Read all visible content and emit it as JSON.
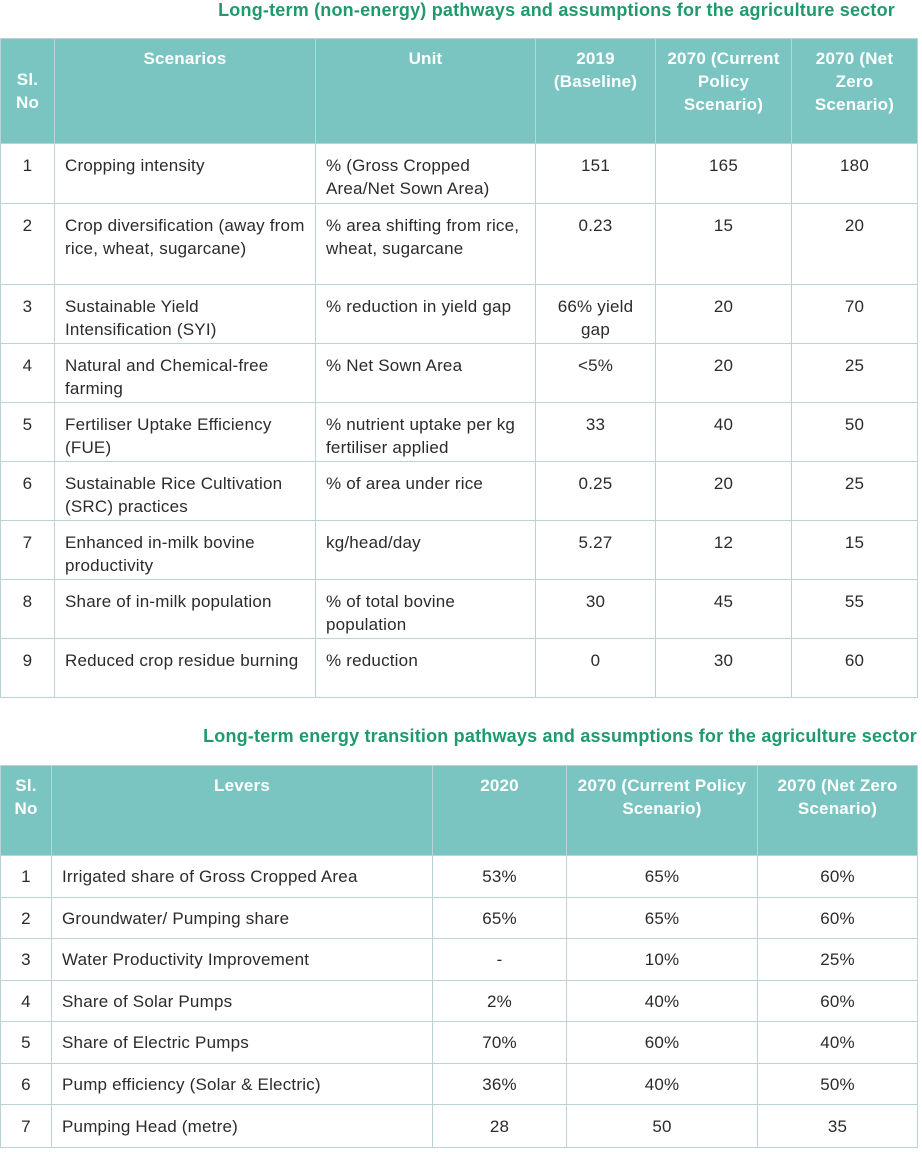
{
  "table1": {
    "title": "Long-term (non-energy) pathways and assumptions for the agriculture sector",
    "headers": [
      "Sl. No",
      "Scenarios",
      "Unit",
      "2019 (Baseline)",
      "2070 (Current Policy Scenario)",
      "2070 (Net Zero Scenario)"
    ],
    "rows": [
      [
        "1",
        "Cropping intensity",
        "% (Gross Cropped Area/Net Sown Area)",
        "151",
        "165",
        "180"
      ],
      [
        "2",
        "Crop diversification (away from rice, wheat, sugarcane)",
        "% area shifting from rice, wheat, sugarcane",
        "0.23",
        "15",
        "20"
      ],
      [
        "3",
        "Sustainable Yield Intensification (SYI)",
        "% reduction in yield gap",
        "66% yield gap",
        "20",
        "70"
      ],
      [
        "4",
        "Natural and Chemical-free farming",
        "% Net Sown Area",
        "<5%",
        "20",
        "25"
      ],
      [
        "5",
        "Fertiliser Uptake Efficiency (FUE)",
        "% nutrient uptake per kg fertiliser applied",
        "33",
        "40",
        "50"
      ],
      [
        "6",
        "Sustainable Rice Cultivation (SRC) practices",
        "% of area under rice",
        "0.25",
        "20",
        "25"
      ],
      [
        "7",
        "Enhanced in-milk bovine productivity",
        "kg/head/day",
        "5.27",
        "12",
        "15"
      ],
      [
        "8",
        "Share of in-milk population",
        "% of total bovine population",
        "30",
        "45",
        "55"
      ],
      [
        "9",
        "Reduced crop residue burning",
        "% reduction",
        "0",
        "30",
        "60"
      ]
    ]
  },
  "table2": {
    "title": "Long-term energy transition pathways and assumptions for the agriculture sector",
    "headers": [
      "Sl. No",
      "Levers",
      "2020",
      "2070 (Current Policy Scenario)",
      "2070 (Net Zero Scenario)"
    ],
    "rows": [
      [
        "1",
        "Irrigated share of Gross Cropped Area",
        "53%",
        "65%",
        "60%"
      ],
      [
        "2",
        "Groundwater/ Pumping share",
        "65%",
        "65%",
        "60%"
      ],
      [
        "3",
        "Water Productivity Improvement",
        "-",
        "10%",
        "25%"
      ],
      [
        "4",
        "Share of Solar Pumps",
        "2%",
        "40%",
        "60%"
      ],
      [
        "5",
        "Share of Electric Pumps",
        "70%",
        "60%",
        "40%"
      ],
      [
        "6",
        "Pump efficiency (Solar & Electric)",
        "36%",
        "40%",
        "50%"
      ],
      [
        "7",
        "Pumping Head (metre)",
        "28",
        "50",
        "35"
      ]
    ]
  }
}
